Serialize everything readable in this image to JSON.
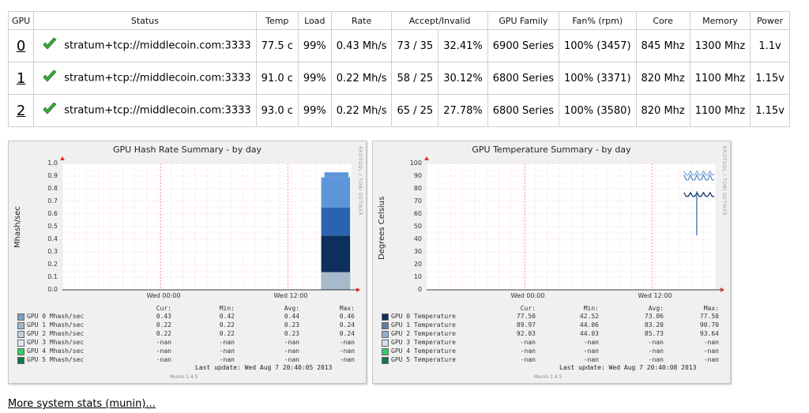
{
  "table": {
    "headers": [
      "GPU",
      "Status",
      "Temp",
      "Load",
      "Rate",
      "Accept/Invalid",
      "GPU Family",
      "Fan% (rpm)",
      "Core",
      "Memory",
      "Power"
    ],
    "rows": [
      {
        "id": "0",
        "status": "stratum+tcp://middlecoin.com:3333",
        "temp": "77.5 c",
        "load": "99%",
        "rate": "0.43 Mh/s",
        "accept": "73 / 35",
        "invalid_pct": "32.41%",
        "family": "6900 Series",
        "fan": "100% (3457)",
        "core": "845 Mhz",
        "memory": "1300 Mhz",
        "power": "1.1v"
      },
      {
        "id": "1",
        "status": "stratum+tcp://middlecoin.com:3333",
        "temp": "91.0 c",
        "load": "99%",
        "rate": "0.22 Mh/s",
        "accept": "58 / 25",
        "invalid_pct": "30.12%",
        "family": "6800 Series",
        "fan": "100% (3371)",
        "core": "820 Mhz",
        "memory": "1100 Mhz",
        "power": "1.15v"
      },
      {
        "id": "2",
        "status": "stratum+tcp://middlecoin.com:3333",
        "temp": "93.0 c",
        "load": "99%",
        "rate": "0.22 Mh/s",
        "accept": "65 / 25",
        "invalid_pct": "27.78%",
        "family": "6800 Series",
        "fan": "100% (3580)",
        "core": "820 Mhz",
        "memory": "1100 Mhz",
        "power": "1.15v"
      }
    ]
  },
  "hash_graph": {
    "title": "GPU Hash Rate Summary - by day",
    "ylabel": "Mhash/sec",
    "side": "RRDTOOL / TOBI OETIKER",
    "yticks": [
      "1.0",
      "0.9",
      "0.8",
      "0.7",
      "0.6",
      "0.5",
      "0.4",
      "0.3",
      "0.2",
      "0.1",
      "0.0"
    ],
    "xticks": [
      "Wed 00:00",
      "Wed 12:00"
    ],
    "legend_header": {
      "cur": "Cur:",
      "min": "Min:",
      "avg": "Avg:",
      "max": "Max:"
    },
    "legend": [
      {
        "name": "GPU 0 Mhash/sec",
        "color": "#7f9fbf",
        "cur": "0.43",
        "min": "0.42",
        "avg": "0.44",
        "max": "0.46"
      },
      {
        "name": "GPU 1 Mhash/sec",
        "color": "#9fb7cf",
        "cur": "0.22",
        "min": "0.22",
        "avg": "0.23",
        "max": "0.24"
      },
      {
        "name": "GPU 2 Mhash/sec",
        "color": "#bfcfdf",
        "cur": "0.22",
        "min": "0.22",
        "avg": "0.23",
        "max": "0.24"
      },
      {
        "name": "GPU 3 Mhash/sec",
        "color": "#dfe7ef",
        "cur": "-nan",
        "min": "-nan",
        "avg": "-nan",
        "max": "-nan"
      },
      {
        "name": "GPU 4 Mhash/sec",
        "color": "#33cc66",
        "cur": "-nan",
        "min": "-nan",
        "avg": "-nan",
        "max": "-nan"
      },
      {
        "name": "GPU 5 Mhash/sec",
        "color": "#117744",
        "cur": "-nan",
        "min": "-nan",
        "avg": "-nan",
        "max": "-nan"
      }
    ],
    "last_update": "Last update:  Wed Aug  7 20:40:05 2013",
    "version": "Munin 1.4.5"
  },
  "temp_graph": {
    "title": "GPU Temperature Summary - by day",
    "ylabel": "Degrees Celsius",
    "side": "RRDTOOL / TOBI OETIKER",
    "yticks": [
      "100",
      "90",
      "80",
      "70",
      "60",
      "50",
      "40",
      "30",
      "20",
      "10",
      "0"
    ],
    "xticks": [
      "Wed 00:00",
      "Wed 12:00"
    ],
    "legend_header": {
      "cur": "Cur:",
      "min": "Min:",
      "avg": "Avg:",
      "max": "Max:"
    },
    "legend": [
      {
        "name": "GPU 0 Temperature",
        "color": "#0f2f5f",
        "cur": "77.50",
        "min": "42.52",
        "avg": "73.06",
        "max": "77.50"
      },
      {
        "name": "GPU 1 Temperature",
        "color": "#5f7f9f",
        "cur": "89.97",
        "min": "44.06",
        "avg": "83.20",
        "max": "90.70"
      },
      {
        "name": "GPU 2 Temperature",
        "color": "#8fafcf",
        "cur": "92.03",
        "min": "44.03",
        "avg": "85.73",
        "max": "93.64"
      },
      {
        "name": "GPU 3 Temperature",
        "color": "#cfdfef",
        "cur": "-nan",
        "min": "-nan",
        "avg": "-nan",
        "max": "-nan"
      },
      {
        "name": "GPU 4 Temperature",
        "color": "#33cc66",
        "cur": "-nan",
        "min": "-nan",
        "avg": "-nan",
        "max": "-nan"
      },
      {
        "name": "GPU 5 Temperature",
        "color": "#117744",
        "cur": "-nan",
        "min": "-nan",
        "avg": "-nan",
        "max": "-nan"
      }
    ],
    "last_update": "Last update:  Wed Aug  7 20:40:08 2013",
    "version": "Munin 1.4.5"
  },
  "footer": {
    "more_link": "More system stats (munin)..."
  }
}
